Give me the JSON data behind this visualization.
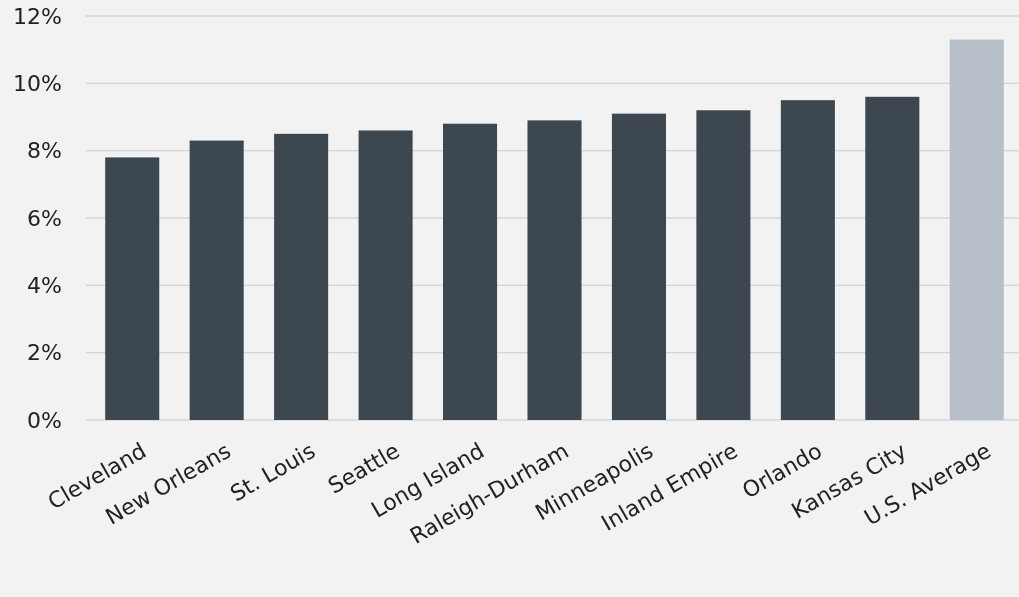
{
  "chart_data": {
    "type": "bar",
    "categories": [
      "Cleveland",
      "New Orleans",
      "St. Louis",
      "Seattle",
      "Long Island",
      "Raleigh-Durham",
      "Minneapolis",
      "Inland Empire",
      "Orlando",
      "Kansas City",
      "U.S. Average"
    ],
    "values": [
      7.8,
      8.3,
      8.5,
      8.6,
      8.8,
      8.9,
      9.1,
      9.2,
      9.5,
      9.6,
      11.3
    ],
    "colors": [
      "#3d4750",
      "#3d4750",
      "#3d4750",
      "#3d4750",
      "#3d4750",
      "#3d4750",
      "#3d4750",
      "#3d4750",
      "#3d4750",
      "#3d4750",
      "#b6bfc8"
    ],
    "ylim": [
      0,
      12
    ],
    "yticks": [
      {
        "value": 0,
        "label": "0%"
      },
      {
        "value": 2,
        "label": "2%"
      },
      {
        "value": 4,
        "label": "4%"
      },
      {
        "value": 6,
        "label": "6%"
      },
      {
        "value": 8,
        "label": "8%"
      },
      {
        "value": 10,
        "label": "10%"
      },
      {
        "value": 12,
        "label": "12%"
      }
    ],
    "grid": "y"
  }
}
